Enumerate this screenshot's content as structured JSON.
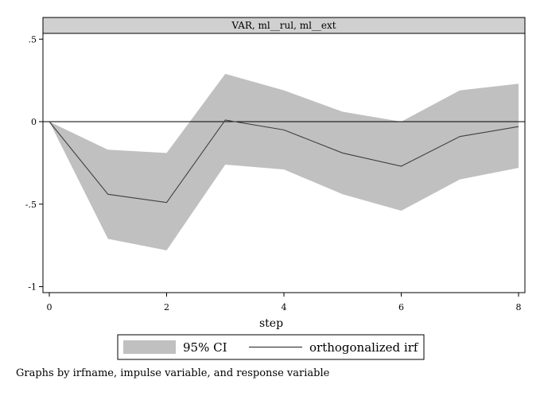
{
  "chart_data": {
    "type": "line",
    "title": "VAR, ml__rul, ml__ext",
    "xlabel": "step",
    "ylabel": "",
    "xlim": [
      0,
      8
    ],
    "ylim": [
      -1,
      0.5
    ],
    "x_ticks": [
      0,
      2,
      4,
      6,
      8
    ],
    "x_tick_labels": [
      "0",
      "2",
      "4",
      "6",
      "8"
    ],
    "y_ticks": [
      0.5,
      0,
      -0.5,
      -1
    ],
    "y_tick_labels": [
      ".5",
      "0",
      "-.5",
      "-1"
    ],
    "grid": false,
    "reference_line": 0,
    "x": [
      0,
      1,
      2,
      3,
      4,
      5,
      6,
      7,
      8
    ],
    "series": [
      {
        "name": "95% CI",
        "type": "band",
        "color": "#c0c0c0",
        "lower": [
          0,
          -0.71,
          -0.78,
          -0.26,
          -0.29,
          -0.44,
          -0.54,
          -0.35,
          -0.28
        ],
        "upper": [
          0,
          -0.17,
          -0.19,
          0.29,
          0.19,
          0.06,
          0.0,
          0.19,
          0.23
        ]
      },
      {
        "name": "orthogonalized irf",
        "type": "line",
        "color": "#404040",
        "values": [
          0,
          -0.44,
          -0.49,
          0.01,
          -0.05,
          -0.19,
          -0.27,
          -0.09,
          -0.03
        ]
      }
    ],
    "legend_position": "bottom",
    "note": "Graphs by irfname, impulse variable, and response variable"
  },
  "colors": {
    "panel_header": "#d0d0d0",
    "ci_band": "#c0c0c0",
    "irf_line": "#404040",
    "zero_line": "#000000"
  }
}
